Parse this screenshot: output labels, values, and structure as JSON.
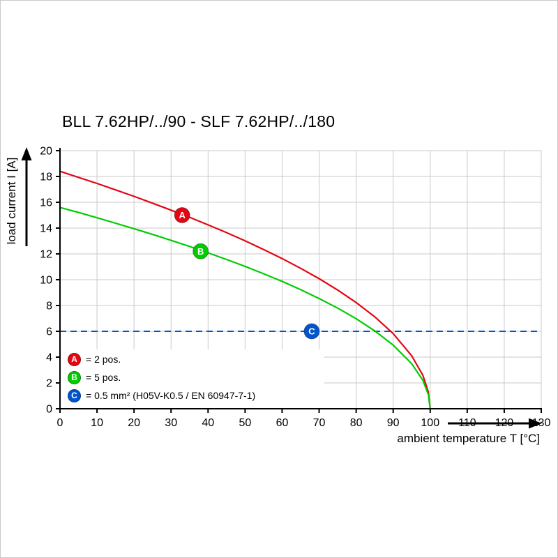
{
  "chart_data": {
    "type": "line",
    "title": "BLL 7.62HP/../90 - SLF 7.62HP/../180",
    "xlabel": "ambient temperature T [°C]",
    "ylabel": "load current I [A]",
    "xlim": [
      0,
      130
    ],
    "ylim": [
      0,
      20
    ],
    "xticks": [
      0,
      10,
      20,
      30,
      40,
      50,
      60,
      70,
      80,
      90,
      100,
      110,
      120,
      130
    ],
    "yticks": [
      0,
      2,
      4,
      6,
      8,
      10,
      12,
      14,
      16,
      18,
      20
    ],
    "grid": true,
    "legend_position": "inside bottom-left",
    "colors": {
      "axis": "#000000",
      "grid": "#c9c9c9",
      "background": "#ffffff"
    },
    "series": [
      {
        "name": "A",
        "legend": "= 2 pos.",
        "color": "#e30613",
        "style": "solid",
        "points": [
          [
            0,
            18.4
          ],
          [
            5,
            17.93
          ],
          [
            10,
            17.46
          ],
          [
            15,
            16.96
          ],
          [
            20,
            16.46
          ],
          [
            25,
            15.93
          ],
          [
            30,
            15.39
          ],
          [
            35,
            14.84
          ],
          [
            40,
            14.25
          ],
          [
            45,
            13.65
          ],
          [
            50,
            13.01
          ],
          [
            55,
            12.34
          ],
          [
            60,
            11.64
          ],
          [
            65,
            10.88
          ],
          [
            70,
            10.08
          ],
          [
            75,
            9.2
          ],
          [
            80,
            8.23
          ],
          [
            85,
            7.13
          ],
          [
            90,
            5.82
          ],
          [
            95,
            4.11
          ],
          [
            98,
            2.6
          ],
          [
            99.5,
            1.3
          ],
          [
            100,
            0
          ]
        ]
      },
      {
        "name": "B",
        "legend": "= 5 pos.",
        "color": "#00cc00",
        "style": "solid",
        "points": [
          [
            0,
            15.6
          ],
          [
            5,
            15.21
          ],
          [
            10,
            14.8
          ],
          [
            15,
            14.38
          ],
          [
            20,
            13.95
          ],
          [
            25,
            13.51
          ],
          [
            30,
            13.05
          ],
          [
            35,
            12.58
          ],
          [
            40,
            12.08
          ],
          [
            45,
            11.57
          ],
          [
            50,
            11.03
          ],
          [
            55,
            10.46
          ],
          [
            60,
            9.87
          ],
          [
            65,
            9.23
          ],
          [
            70,
            8.54
          ],
          [
            75,
            7.8
          ],
          [
            80,
            6.98
          ],
          [
            85,
            6.04
          ],
          [
            90,
            4.93
          ],
          [
            95,
            3.49
          ],
          [
            98,
            2.21
          ],
          [
            99.5,
            1.1
          ],
          [
            100,
            0
          ]
        ]
      },
      {
        "name": "C",
        "legend": "= 0.5 mm² (H05V-K0.5 / EN 60947-7-1)",
        "color": "#0055cc",
        "style": "dashed",
        "hline": 6
      }
    ],
    "curve_markers": [
      {
        "series": "A",
        "x": 33,
        "y": 15.0
      },
      {
        "series": "B",
        "x": 38,
        "y": 12.2
      },
      {
        "series": "C",
        "x": 68,
        "y": 6.0
      }
    ]
  }
}
